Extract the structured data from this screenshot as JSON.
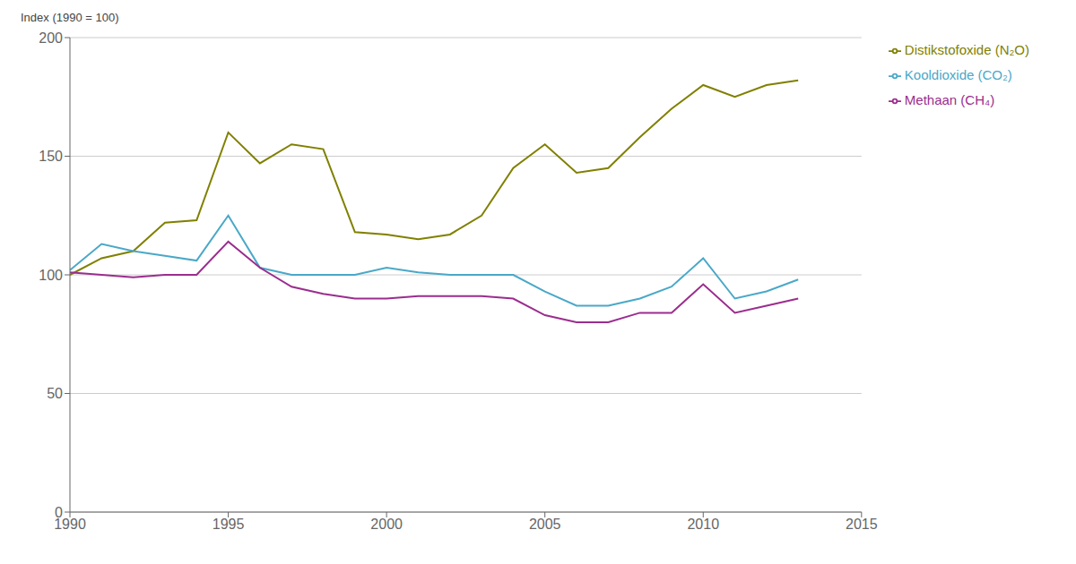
{
  "chart_data": {
    "type": "line",
    "ylabel": "Index (1990 = 100)",
    "x": [
      1990,
      1991,
      1992,
      1993,
      1994,
      1995,
      1996,
      1997,
      1998,
      1999,
      2000,
      2001,
      2002,
      2003,
      2004,
      2005,
      2006,
      2007,
      2008,
      2009,
      2010,
      2011,
      2012,
      2013
    ],
    "series": [
      {
        "name": "Distikstofoxide (N₂O)",
        "color": "#808000",
        "values": [
          100,
          107,
          110,
          122,
          123,
          160,
          147,
          155,
          153,
          118,
          117,
          115,
          117,
          125,
          145,
          155,
          143,
          145,
          158,
          170,
          180,
          175,
          180,
          182
        ]
      },
      {
        "name": "Kooldioxide (CO₂)",
        "color": "#4aa8c8",
        "values": [
          102,
          113,
          110,
          108,
          106,
          125,
          103,
          100,
          100,
          100,
          103,
          101,
          100,
          100,
          100,
          93,
          87,
          87,
          90,
          95,
          107,
          90,
          93,
          98
        ]
      },
      {
        "name": "Methaan (CH₄)",
        "color": "#9b2d8e",
        "values": [
          101,
          100,
          99,
          100,
          100,
          114,
          103,
          95,
          92,
          90,
          90,
          91,
          91,
          91,
          90,
          83,
          80,
          80,
          84,
          84,
          96,
          84,
          87,
          90
        ]
      }
    ],
    "xlim": [
      1990,
      2015
    ],
    "xticks": [
      1990,
      1995,
      2000,
      2005,
      2010,
      2015
    ],
    "ylim": [
      0,
      200
    ],
    "yticks": [
      0,
      50,
      100,
      150,
      200
    ],
    "grid": "y",
    "legend": "right"
  }
}
